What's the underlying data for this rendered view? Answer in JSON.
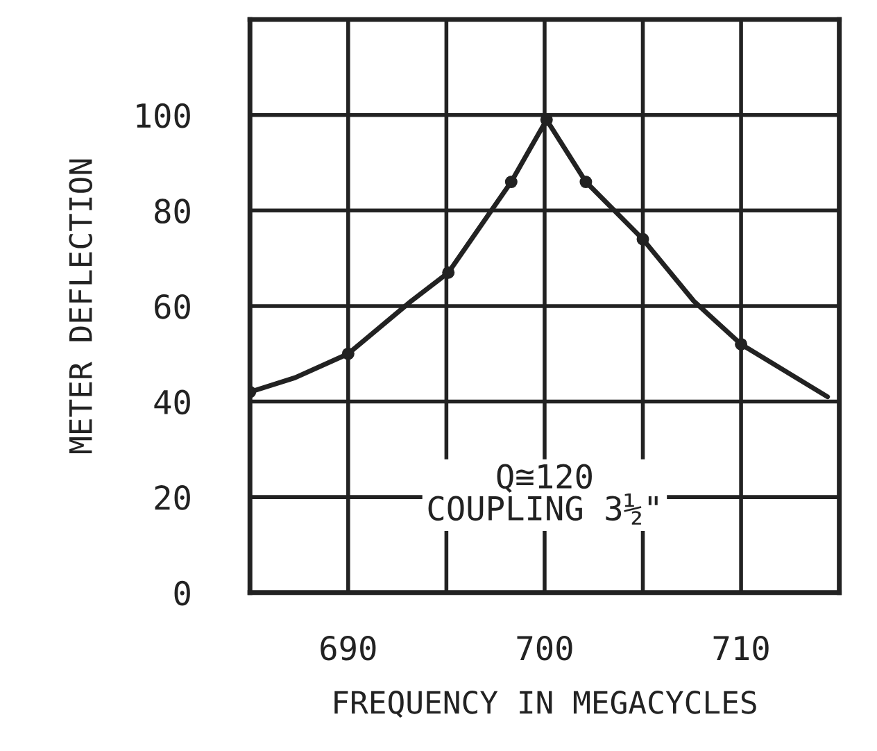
{
  "chart_data": {
    "type": "line",
    "xlabel": "FREQUENCY IN MEGACYCLES",
    "ylabel": "METER DEFLECTION",
    "series": [
      {
        "marker": "none",
        "color": "#222222",
        "x": [
          685,
          687.3,
          690,
          693.2,
          695.1,
          698.3,
          700.1,
          702.1,
          705,
          707.6,
          710,
          714.4
        ],
        "values": [
          42,
          45,
          50,
          61,
          67,
          86,
          99,
          86,
          74,
          61,
          52,
          41
        ]
      },
      {
        "type": "scatter",
        "marker": "circle",
        "color": "#222222",
        "x": [
          685,
          690,
          695.1,
          698.3,
          700.1,
          702.1,
          705,
          710
        ],
        "values": [
          42,
          50,
          67,
          86,
          99,
          86,
          74,
          52
        ]
      }
    ],
    "xlim": [
      685,
      715
    ],
    "xticks": [
      {
        "value": 685,
        "label": null
      },
      690,
      {
        "value": 695,
        "label": null
      },
      700,
      {
        "value": 705,
        "label": null
      },
      710,
      {
        "value": 715,
        "label": null
      }
    ],
    "ylim": [
      0,
      120
    ],
    "yticks": [
      0,
      20,
      40,
      60,
      80,
      100,
      {
        "value": 120,
        "label": null
      }
    ],
    "grid": true,
    "line_style": "solid",
    "annotations": [
      "Q≅120\nCOUPLING 3½\""
    ]
  }
}
